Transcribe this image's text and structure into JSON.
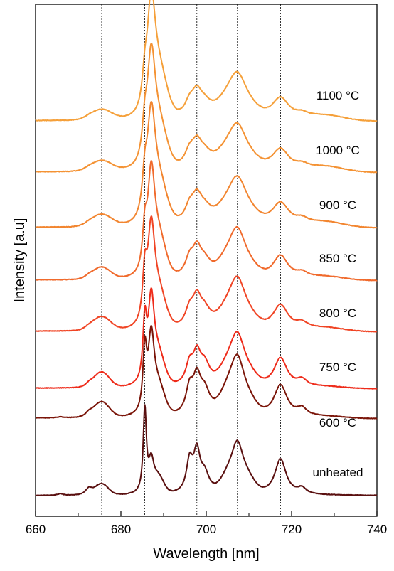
{
  "chart_data": {
    "type": "line",
    "title": "",
    "xlabel": "Wavelength [nm]",
    "ylabel": "Intensity [a.u]",
    "xlim": [
      660,
      740
    ],
    "x_ticks": [
      "660",
      "680",
      "700",
      "720",
      "740"
    ],
    "y_ticks_shown": false,
    "grid": false,
    "stacked_offset": true,
    "reference_lines_nm": [
      675.5,
      685.6,
      687.1,
      697.8,
      707.3,
      717.4
    ],
    "peaks": [
      {
        "center": 665.8,
        "width": 0.7,
        "shape": "l"
      },
      {
        "center": 672.5,
        "width": 1.0,
        "shape": "l"
      },
      {
        "center": 675.5,
        "width": 1.5,
        "shape": "g"
      },
      {
        "center": 685.6,
        "width": 0.45,
        "shape": "l"
      },
      {
        "center": 687.1,
        "width": 0.75,
        "shape": "l"
      },
      {
        "center": 688.8,
        "width": 1.2,
        "shape": "g"
      },
      {
        "center": 696.1,
        "width": 0.9,
        "shape": "l"
      },
      {
        "center": 697.8,
        "width": 0.9,
        "shape": "l"
      },
      {
        "center": 699.6,
        "width": 1.3,
        "shape": "l"
      },
      {
        "center": 705.5,
        "width": 1.8,
        "shape": "g"
      },
      {
        "center": 707.3,
        "width": 1.6,
        "shape": "l"
      },
      {
        "center": 709.3,
        "width": 1.8,
        "shape": "g"
      },
      {
        "center": 717.4,
        "width": 1.6,
        "shape": "l"
      },
      {
        "center": 722.4,
        "width": 1.2,
        "shape": "l"
      }
    ],
    "series": [
      {
        "name": "unheated",
        "color": "#5a1010",
        "baseline": 0.0,
        "broad": 0,
        "amps": [
          0.02,
          0.08,
          0.13,
          1.0,
          0.35,
          0.18,
          0.37,
          0.45,
          0.22,
          0.2,
          0.42,
          0.17,
          0.42,
          0.07
        ]
      },
      {
        "name": "600 °C",
        "color": "#7a1408",
        "baseline": 0.82,
        "broad": 1,
        "amps": [
          0.01,
          0.05,
          0.18,
          0.72,
          0.86,
          0.3,
          0.3,
          0.38,
          0.28,
          0.28,
          0.42,
          0.18,
          0.38,
          0.09
        ]
      },
      {
        "name": "750 °C",
        "color": "#ee2b1a",
        "baseline": 1.42,
        "broad": 1,
        "amps": [
          0.0,
          0.04,
          0.18,
          0.7,
          0.95,
          0.32,
          0.24,
          0.32,
          0.25,
          0.24,
          0.38,
          0.16,
          0.35,
          0.08
        ]
      },
      {
        "name": "800 °C",
        "color": "#f04424",
        "baseline": 2.17,
        "broad": 2,
        "amps": [
          0.0,
          0.03,
          0.16,
          0.55,
          1.06,
          0.38,
          0.2,
          0.3,
          0.2,
          0.22,
          0.36,
          0.14,
          0.3,
          0.07
        ]
      },
      {
        "name": "850 °C",
        "color": "#f06a2c",
        "baseline": 2.82,
        "broad": 2,
        "amps": [
          0.0,
          0.03,
          0.14,
          0.45,
          1.1,
          0.42,
          0.2,
          0.28,
          0.18,
          0.22,
          0.34,
          0.14,
          0.28,
          0.06
        ]
      },
      {
        "name": "900 °C",
        "color": "#f2852f",
        "baseline": 3.55,
        "broad": 3,
        "amps": [
          0.0,
          0.02,
          0.14,
          0.4,
          1.12,
          0.45,
          0.18,
          0.26,
          0.16,
          0.2,
          0.32,
          0.13,
          0.28,
          0.06
        ]
      },
      {
        "name": "1000 °C",
        "color": "#f49233",
        "baseline": 4.3,
        "broad": 3,
        "amps": [
          0.0,
          0.02,
          0.12,
          0.35,
          1.15,
          0.47,
          0.18,
          0.24,
          0.16,
          0.2,
          0.3,
          0.12,
          0.26,
          0.05
        ]
      },
      {
        "name": "1100 °C",
        "color": "#f5a03a",
        "baseline": 5.05,
        "broad": 3,
        "amps": [
          0.0,
          0.02,
          0.12,
          0.3,
          1.18,
          0.5,
          0.16,
          0.24,
          0.15,
          0.2,
          0.3,
          0.12,
          0.26,
          0.05
        ]
      }
    ]
  }
}
